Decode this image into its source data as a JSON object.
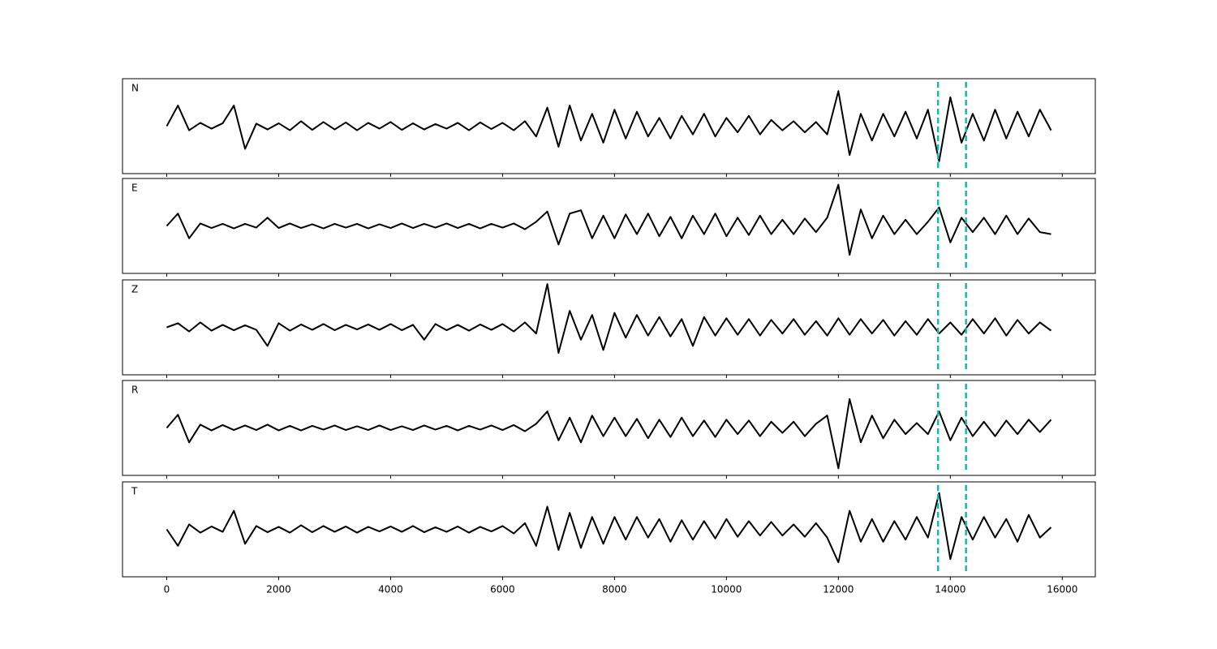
{
  "chart_data": {
    "type": "line",
    "x": [
      0,
      200,
      400,
      600,
      800,
      1000,
      1200,
      1400,
      1600,
      1800,
      2000,
      2200,
      2400,
      2600,
      2800,
      3000,
      3200,
      3400,
      3600,
      3800,
      4000,
      4200,
      4400,
      4600,
      4800,
      5000,
      5200,
      5400,
      5600,
      5800,
      6000,
      6200,
      6400,
      6600,
      6800,
      7000,
      7200,
      7400,
      7600,
      7800,
      8000,
      8200,
      8400,
      8600,
      8800,
      9000,
      9200,
      9400,
      9600,
      9800,
      10000,
      10200,
      10400,
      10600,
      10800,
      11000,
      11200,
      11400,
      11600,
      11800,
      12000,
      12200,
      12400,
      12600,
      12800,
      13000,
      13200,
      13400,
      13600,
      13800,
      14000,
      14200,
      14400,
      14600,
      14800,
      15000,
      15200,
      15400,
      15600,
      15800
    ],
    "series": [
      {
        "name": "N",
        "color": "#000000",
        "values": [
          0.0,
          0.5,
          -0.1,
          0.08,
          -0.06,
          0.07,
          0.5,
          -0.55,
          0.06,
          -0.08,
          0.07,
          -0.1,
          0.12,
          -0.09,
          0.1,
          -0.08,
          0.09,
          -0.1,
          0.08,
          -0.06,
          0.1,
          -0.09,
          0.07,
          -0.08,
          0.05,
          -0.06,
          0.08,
          -0.1,
          0.09,
          -0.07,
          0.08,
          -0.1,
          0.12,
          -0.25,
          0.45,
          -0.5,
          0.5,
          -0.35,
          0.3,
          -0.4,
          0.4,
          -0.3,
          0.35,
          -0.25,
          0.2,
          -0.3,
          0.25,
          -0.2,
          0.3,
          -0.25,
          0.2,
          -0.15,
          0.25,
          -0.2,
          0.15,
          -0.1,
          0.12,
          -0.15,
          0.1,
          -0.2,
          0.85,
          -0.7,
          0.3,
          -0.35,
          0.3,
          -0.25,
          0.35,
          -0.3,
          0.4,
          -0.85,
          0.7,
          -0.4,
          0.3,
          -0.35,
          0.4,
          -0.3,
          0.35,
          -0.25,
          0.4,
          -0.1
        ]
      },
      {
        "name": "E",
        "color": "#000000",
        "values": [
          0.0,
          0.3,
          -0.3,
          0.06,
          -0.05,
          0.05,
          -0.06,
          0.05,
          -0.04,
          0.2,
          -0.05,
          0.06,
          -0.05,
          0.04,
          -0.06,
          0.05,
          -0.04,
          0.05,
          -0.06,
          0.04,
          -0.05,
          0.06,
          -0.05,
          0.05,
          -0.04,
          0.06,
          -0.05,
          0.05,
          -0.06,
          0.05,
          -0.04,
          0.06,
          -0.08,
          0.1,
          0.35,
          -0.45,
          0.3,
          0.38,
          -0.3,
          0.25,
          -0.3,
          0.28,
          -0.2,
          0.3,
          -0.25,
          0.22,
          -0.3,
          0.25,
          -0.2,
          0.3,
          -0.25,
          0.2,
          -0.22,
          0.25,
          -0.2,
          0.15,
          -0.2,
          0.18,
          -0.15,
          0.2,
          1.0,
          -0.7,
          0.4,
          -0.3,
          0.25,
          -0.2,
          0.15,
          -0.2,
          0.1,
          0.45,
          -0.4,
          0.2,
          -0.15,
          0.2,
          -0.2,
          0.25,
          -0.2,
          0.18,
          -0.15,
          -0.2
        ]
      },
      {
        "name": "Z",
        "color": "#000000",
        "values": [
          0.0,
          0.1,
          -0.1,
          0.12,
          -0.08,
          0.06,
          -0.07,
          0.05,
          -0.06,
          -0.45,
          0.1,
          -0.08,
          0.07,
          -0.06,
          0.08,
          -0.07,
          0.06,
          -0.05,
          0.07,
          -0.06,
          0.08,
          -0.07,
          0.06,
          -0.3,
          0.08,
          -0.07,
          0.06,
          -0.08,
          0.07,
          -0.06,
          0.08,
          -0.1,
          0.12,
          -0.15,
          1.05,
          -0.62,
          0.4,
          -0.3,
          0.3,
          -0.55,
          0.35,
          -0.25,
          0.3,
          -0.2,
          0.25,
          -0.22,
          0.2,
          -0.45,
          0.25,
          -0.2,
          0.22,
          -0.18,
          0.2,
          -0.2,
          0.18,
          -0.15,
          0.2,
          -0.18,
          0.15,
          -0.2,
          0.22,
          -0.18,
          0.2,
          -0.15,
          0.18,
          -0.2,
          0.15,
          -0.18,
          0.2,
          -0.15,
          0.12,
          -0.18,
          0.2,
          -0.15,
          0.22,
          -0.2,
          0.18,
          -0.15,
          0.12,
          -0.08
        ]
      },
      {
        "name": "R",
        "color": "#000000",
        "values": [
          0.0,
          0.32,
          -0.35,
          0.08,
          -0.06,
          0.07,
          -0.05,
          0.06,
          -0.05,
          0.08,
          -0.06,
          0.05,
          -0.06,
          0.05,
          -0.04,
          0.06,
          -0.05,
          0.04,
          -0.05,
          0.06,
          -0.05,
          0.04,
          -0.05,
          0.06,
          -0.04,
          0.05,
          -0.06,
          0.05,
          -0.04,
          0.06,
          -0.05,
          0.07,
          -0.08,
          0.1,
          0.4,
          -0.3,
          0.25,
          -0.35,
          0.3,
          -0.2,
          0.25,
          -0.2,
          0.22,
          -0.25,
          0.2,
          -0.22,
          0.25,
          -0.2,
          0.18,
          -0.22,
          0.2,
          -0.15,
          0.18,
          -0.2,
          0.15,
          -0.12,
          0.15,
          -0.2,
          0.1,
          0.3,
          -0.98,
          0.7,
          -0.35,
          0.3,
          -0.25,
          0.2,
          -0.15,
          0.12,
          -0.15,
          0.4,
          -0.3,
          0.25,
          -0.2,
          0.15,
          -0.2,
          0.18,
          -0.15,
          0.2,
          -0.1,
          0.2
        ]
      },
      {
        "name": "T",
        "color": "#000000",
        "values": [
          0.0,
          -0.4,
          0.12,
          -0.08,
          0.07,
          -0.06,
          0.45,
          -0.35,
          0.08,
          -0.07,
          0.06,
          -0.08,
          0.1,
          -0.07,
          0.08,
          -0.06,
          0.07,
          -0.08,
          0.06,
          -0.05,
          0.07,
          -0.06,
          0.08,
          -0.07,
          0.05,
          -0.06,
          0.07,
          -0.08,
          0.06,
          -0.05,
          0.08,
          -0.1,
          0.15,
          -0.4,
          0.55,
          -0.5,
          0.4,
          -0.45,
          0.3,
          -0.35,
          0.3,
          -0.25,
          0.3,
          -0.2,
          0.25,
          -0.3,
          0.22,
          -0.25,
          0.2,
          -0.22,
          0.25,
          -0.18,
          0.2,
          -0.15,
          0.18,
          -0.15,
          0.12,
          -0.18,
          0.15,
          -0.2,
          -0.8,
          0.45,
          -0.3,
          0.25,
          -0.3,
          0.2,
          -0.25,
          0.3,
          -0.2,
          0.88,
          -0.72,
          0.3,
          -0.25,
          0.3,
          -0.2,
          0.25,
          -0.3,
          0.35,
          -0.2,
          0.05
        ]
      }
    ],
    "vlines": [
      13780,
      14280
    ],
    "vline_color": "#00bfbf",
    "xlim": [
      -790,
      16590
    ],
    "xticks": [
      0,
      2000,
      4000,
      6000,
      8000,
      10000,
      12000,
      14000,
      16000
    ],
    "ylim": [
      -1.15,
      1.15
    ]
  }
}
